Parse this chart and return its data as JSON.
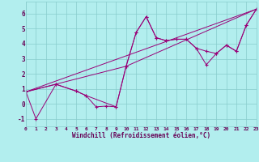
{
  "bg_color": "#b2eeee",
  "line_color": "#990077",
  "grid_color": "#88cccc",
  "xlabel": "Windchill (Refroidissement éolien,°C)",
  "xlim": [
    0,
    23
  ],
  "ylim": [
    -1.5,
    6.8
  ],
  "yticks": [
    -1,
    0,
    1,
    2,
    3,
    4,
    5,
    6
  ],
  "xticks": [
    0,
    1,
    2,
    3,
    4,
    5,
    6,
    7,
    8,
    9,
    10,
    11,
    12,
    13,
    14,
    15,
    16,
    17,
    18,
    19,
    20,
    21,
    22,
    23
  ],
  "line1_x": [
    0,
    1,
    3,
    5,
    6,
    7,
    8,
    9,
    10,
    11,
    12,
    13,
    14,
    15,
    16,
    17,
    18,
    19,
    20,
    21,
    22,
    23
  ],
  "line1_y": [
    0.8,
    -1.0,
    1.3,
    0.85,
    0.55,
    -0.2,
    -0.15,
    -0.2,
    2.5,
    4.75,
    5.8,
    4.4,
    4.2,
    4.3,
    4.3,
    3.7,
    3.5,
    3.35,
    3.9,
    3.5,
    5.25,
    6.3
  ],
  "line2_x": [
    0,
    3,
    5,
    6,
    9,
    10,
    11,
    12,
    13,
    14,
    15,
    16,
    17,
    18,
    19,
    20,
    21,
    22,
    23
  ],
  "line2_y": [
    0.8,
    1.3,
    0.85,
    0.55,
    -0.2,
    2.5,
    4.75,
    5.8,
    4.4,
    4.2,
    4.3,
    4.3,
    3.7,
    2.6,
    3.35,
    3.9,
    3.5,
    5.25,
    6.3
  ],
  "line3_x": [
    0,
    23
  ],
  "line3_y": [
    0.8,
    6.3
  ],
  "line4_x": [
    0,
    10,
    23
  ],
  "line4_y": [
    0.8,
    2.5,
    6.3
  ]
}
